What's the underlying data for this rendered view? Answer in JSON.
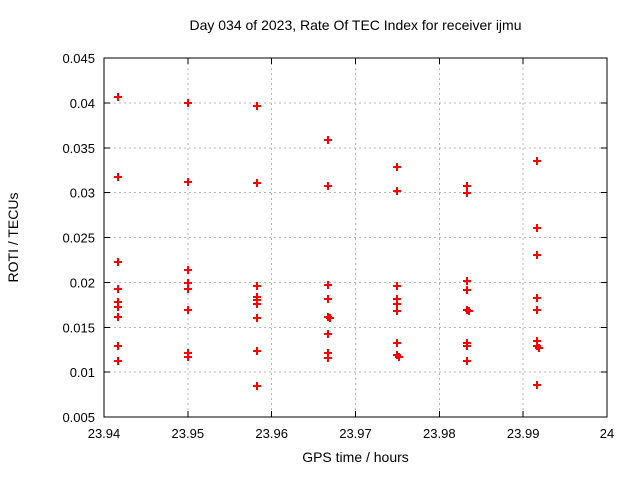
{
  "chart_data": {
    "type": "scatter",
    "title": "Day 034 of 2023, Rate Of TEC Index for receiver ijmu",
    "xlabel": "GPS time / hours",
    "ylabel": "ROTI / TECUs",
    "xlim": [
      23.94,
      24
    ],
    "ylim": [
      0.005,
      0.045
    ],
    "x_tick_values": [
      23.94,
      23.95,
      23.96,
      23.97,
      23.98,
      23.99,
      24
    ],
    "x_tick_labels": [
      "23.94",
      "23.95",
      "23.96",
      "23.97",
      "23.98",
      "23.99",
      "24"
    ],
    "y_tick_values": [
      0.005,
      0.01,
      0.015,
      0.02,
      0.025,
      0.03,
      0.035,
      0.04,
      0.045
    ],
    "y_tick_labels": [
      "0.005",
      "0.01",
      "0.015",
      "0.02",
      "0.025",
      "0.03",
      "0.035",
      "0.04",
      "0.045"
    ],
    "grid": true,
    "legend": false,
    "marker": "plus",
    "colors": {
      "marker": "#ff0000",
      "grid": "#b4b4b4",
      "axis": "#000000",
      "text": "#000000",
      "background": "#ffffff"
    },
    "series": [
      {
        "name": "ROTI",
        "points": [
          [
            23.9417,
            0.0407
          ],
          [
            23.9417,
            0.0317
          ],
          [
            23.9417,
            0.0223
          ],
          [
            23.9417,
            0.0193
          ],
          [
            23.9417,
            0.0178
          ],
          [
            23.9417,
            0.0173
          ],
          [
            23.9417,
            0.0161
          ],
          [
            23.9417,
            0.0129
          ],
          [
            23.9417,
            0.0112
          ],
          [
            23.95,
            0.04
          ],
          [
            23.95,
            0.0312
          ],
          [
            23.95,
            0.0214
          ],
          [
            23.95,
            0.0199
          ],
          [
            23.95,
            0.0193
          ],
          [
            23.95,
            0.0169
          ],
          [
            23.95,
            0.0121
          ],
          [
            23.95,
            0.0117
          ],
          [
            23.9583,
            0.0396
          ],
          [
            23.9583,
            0.0311
          ],
          [
            23.9583,
            0.0196
          ],
          [
            23.9583,
            0.0184
          ],
          [
            23.9583,
            0.018
          ],
          [
            23.9583,
            0.0176
          ],
          [
            23.9583,
            0.016
          ],
          [
            23.9583,
            0.0124
          ],
          [
            23.9583,
            0.0085
          ],
          [
            23.9667,
            0.0359
          ],
          [
            23.9667,
            0.0307
          ],
          [
            23.9667,
            0.0197
          ],
          [
            23.9667,
            0.0181
          ],
          [
            23.9667,
            0.0161
          ],
          [
            23.9669,
            0.016
          ],
          [
            23.9667,
            0.0142
          ],
          [
            23.9667,
            0.0121
          ],
          [
            23.9667,
            0.0116
          ],
          [
            23.975,
            0.0328
          ],
          [
            23.975,
            0.0302
          ],
          [
            23.975,
            0.0196
          ],
          [
            23.975,
            0.0181
          ],
          [
            23.975,
            0.0176
          ],
          [
            23.975,
            0.0168
          ],
          [
            23.975,
            0.0132
          ],
          [
            23.975,
            0.0119
          ],
          [
            23.9752,
            0.0117
          ],
          [
            23.9833,
            0.0307
          ],
          [
            23.9833,
            0.03
          ],
          [
            23.9833,
            0.0202
          ],
          [
            23.9833,
            0.0191
          ],
          [
            23.9833,
            0.0169
          ],
          [
            23.9835,
            0.0168
          ],
          [
            23.9833,
            0.0133
          ],
          [
            23.9833,
            0.0129
          ],
          [
            23.9833,
            0.0112
          ],
          [
            23.9917,
            0.0335
          ],
          [
            23.9917,
            0.0261
          ],
          [
            23.9917,
            0.0231
          ],
          [
            23.9917,
            0.0183
          ],
          [
            23.9917,
            0.0169
          ],
          [
            23.9917,
            0.0135
          ],
          [
            23.9917,
            0.0129
          ],
          [
            23.9919,
            0.0127
          ],
          [
            23.9917,
            0.0086
          ]
        ]
      }
    ]
  }
}
